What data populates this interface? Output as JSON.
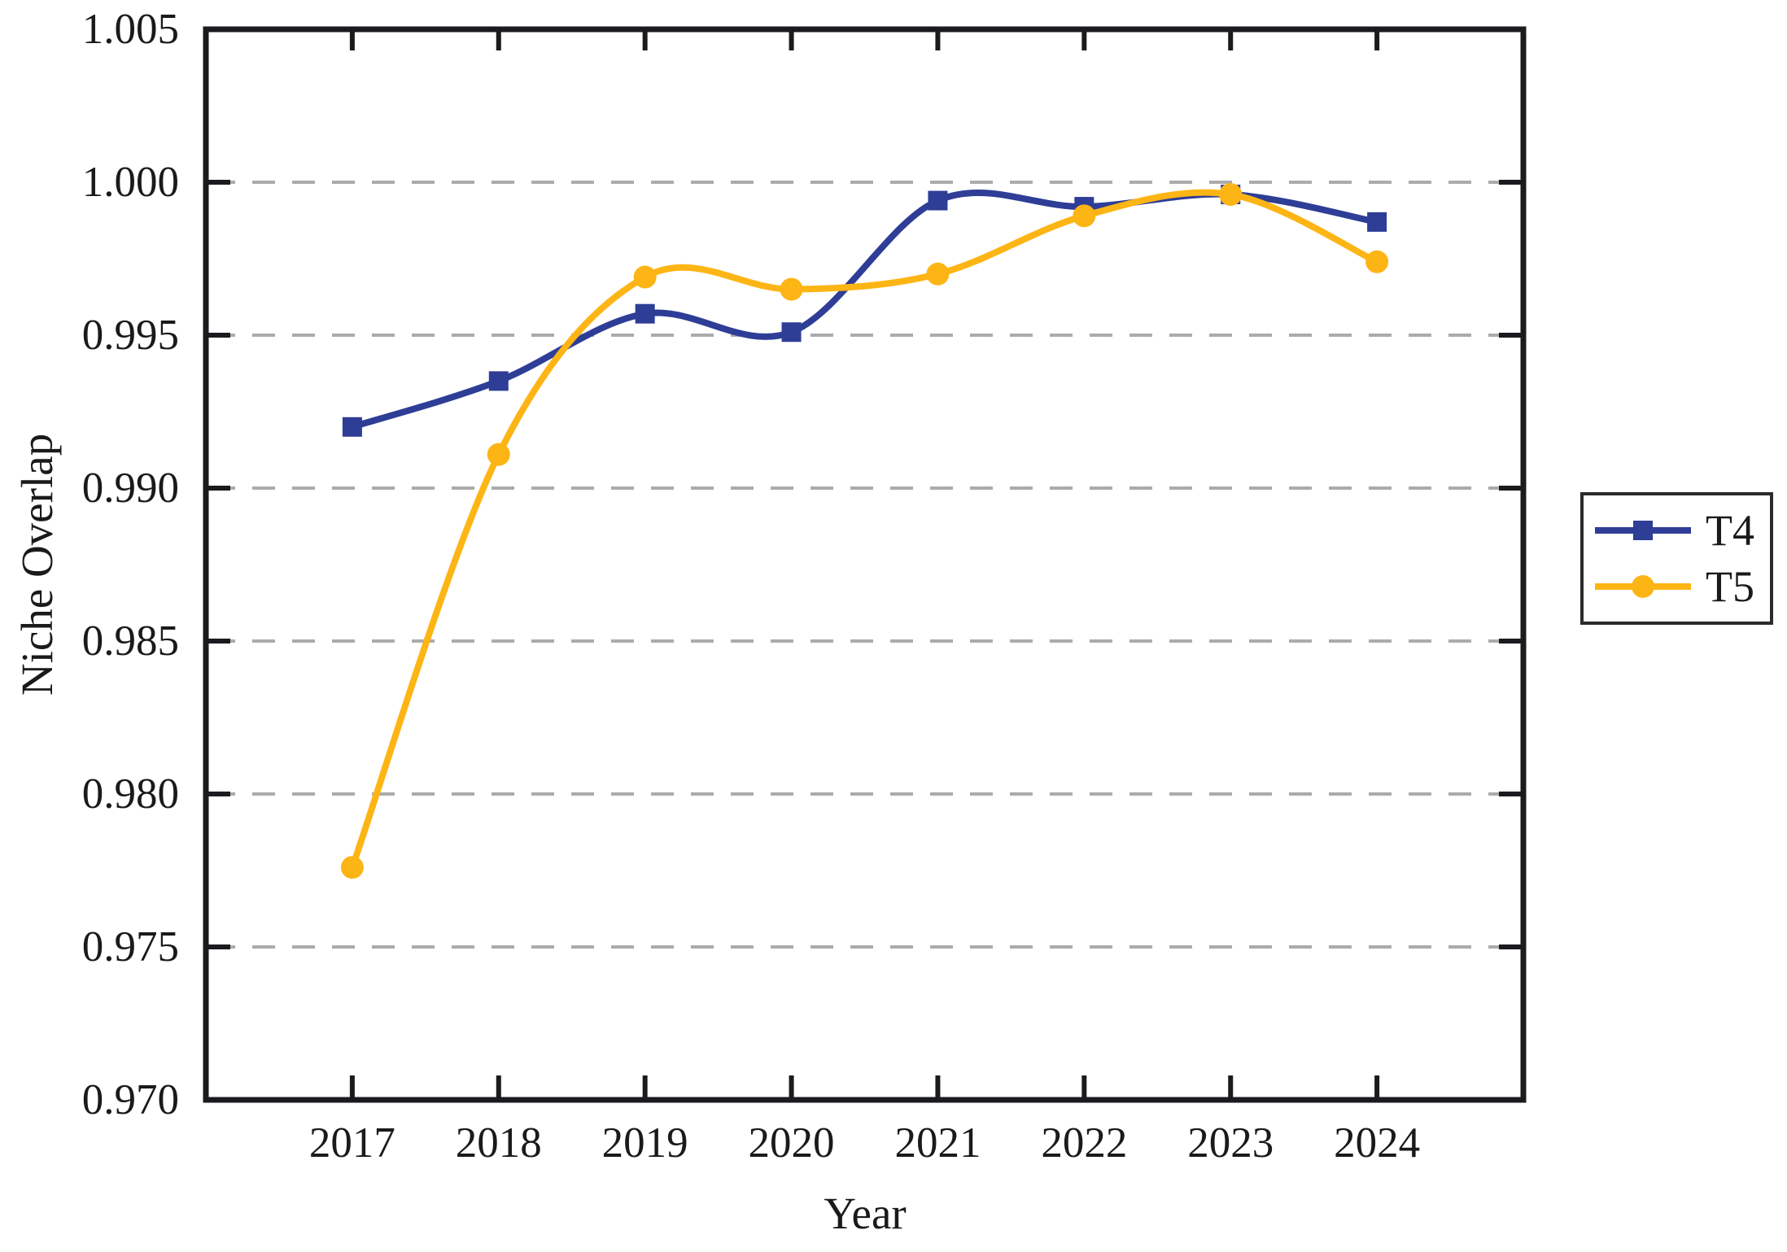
{
  "chart_data": {
    "type": "line",
    "title": "",
    "xlabel": "Year",
    "ylabel": "Niche Overlap",
    "categories": [
      "2017",
      "2018",
      "2019",
      "2020",
      "2021",
      "2022",
      "2023",
      "2024"
    ],
    "series": [
      {
        "name": "T4",
        "marker": "square",
        "color": "#2E3D96",
        "values": [
          0.992,
          0.9935,
          0.9957,
          0.9951,
          0.9994,
          0.9992,
          0.9996,
          0.9987
        ]
      },
      {
        "name": "T5",
        "marker": "circle",
        "color": "#FDB515",
        "values": [
          0.9776,
          0.9911,
          0.9969,
          0.9965,
          0.997,
          0.9989,
          0.9996,
          0.9974
        ]
      }
    ],
    "ylim": [
      0.97,
      1.005
    ],
    "y_tick_labels": [
      "1.005",
      "1.000",
      "0.995",
      "0.990",
      "0.985",
      "0.980",
      "0.975",
      "0.970"
    ],
    "y_tick_values": [
      1.005,
      1.0,
      0.995,
      0.99,
      0.985,
      0.98,
      0.975,
      0.97
    ],
    "grid": "horizontal-dashed",
    "grid_color": "#ABABAB",
    "axis_color": "#1B1B1F",
    "smooth": true,
    "legend_position": "outside-right"
  },
  "legend": {
    "items": [
      {
        "label": "T4"
      },
      {
        "label": "T5"
      }
    ]
  }
}
